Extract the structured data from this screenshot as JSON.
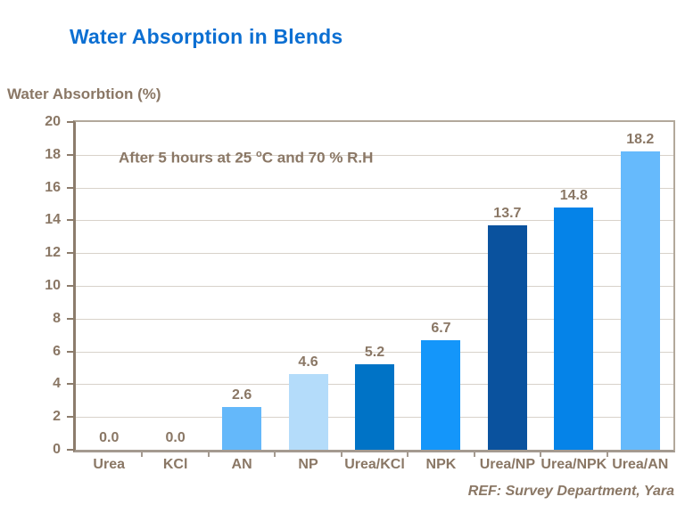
{
  "title": "Water Absorption in Blends",
  "y_axis_label": "Water Absorbtion (%)",
  "annotation_parts": [
    "After 5 hours at 25 ",
    "o",
    "C and 70 % R.H"
  ],
  "footer": "REF: Survey Department, Yara",
  "colors": {
    "title_blue": "#0c6fd2",
    "text_brown": "#8a7765",
    "y_axis_line": "#8c7c6c",
    "x_axis_line": "#a49a90",
    "gridline": "#d8d2ca",
    "plot_border": "#b2a89b"
  },
  "chart_data": {
    "type": "bar",
    "title": "Water Absorption in Blends",
    "xlabel": "",
    "ylabel": "Water Absorbtion (%)",
    "categories": [
      "Urea",
      "KCl",
      "AN",
      "NP",
      "Urea/KCl",
      "NPK",
      "Urea/NP",
      "Urea/NPK",
      "Urea/AN"
    ],
    "values": [
      0.0,
      0.0,
      2.6,
      4.6,
      5.2,
      6.7,
      13.7,
      14.8,
      18.2
    ],
    "value_labels": [
      "0.0",
      "0.0",
      "2.6",
      "4.6",
      "5.2",
      "6.7",
      "13.7",
      "14.8",
      "18.2"
    ],
    "bar_colors": [
      null,
      null,
      "#64b8fa",
      "#b4dcfa",
      "#0073c6",
      "#1496fa",
      "#0a529e",
      "#0583e8",
      "#66bafc"
    ],
    "ylim": [
      0,
      20
    ],
    "ytick_step": 2,
    "grid": true,
    "legend": "none",
    "annotation": "After 5 hours at 25 oC and 70 % R.H"
  }
}
